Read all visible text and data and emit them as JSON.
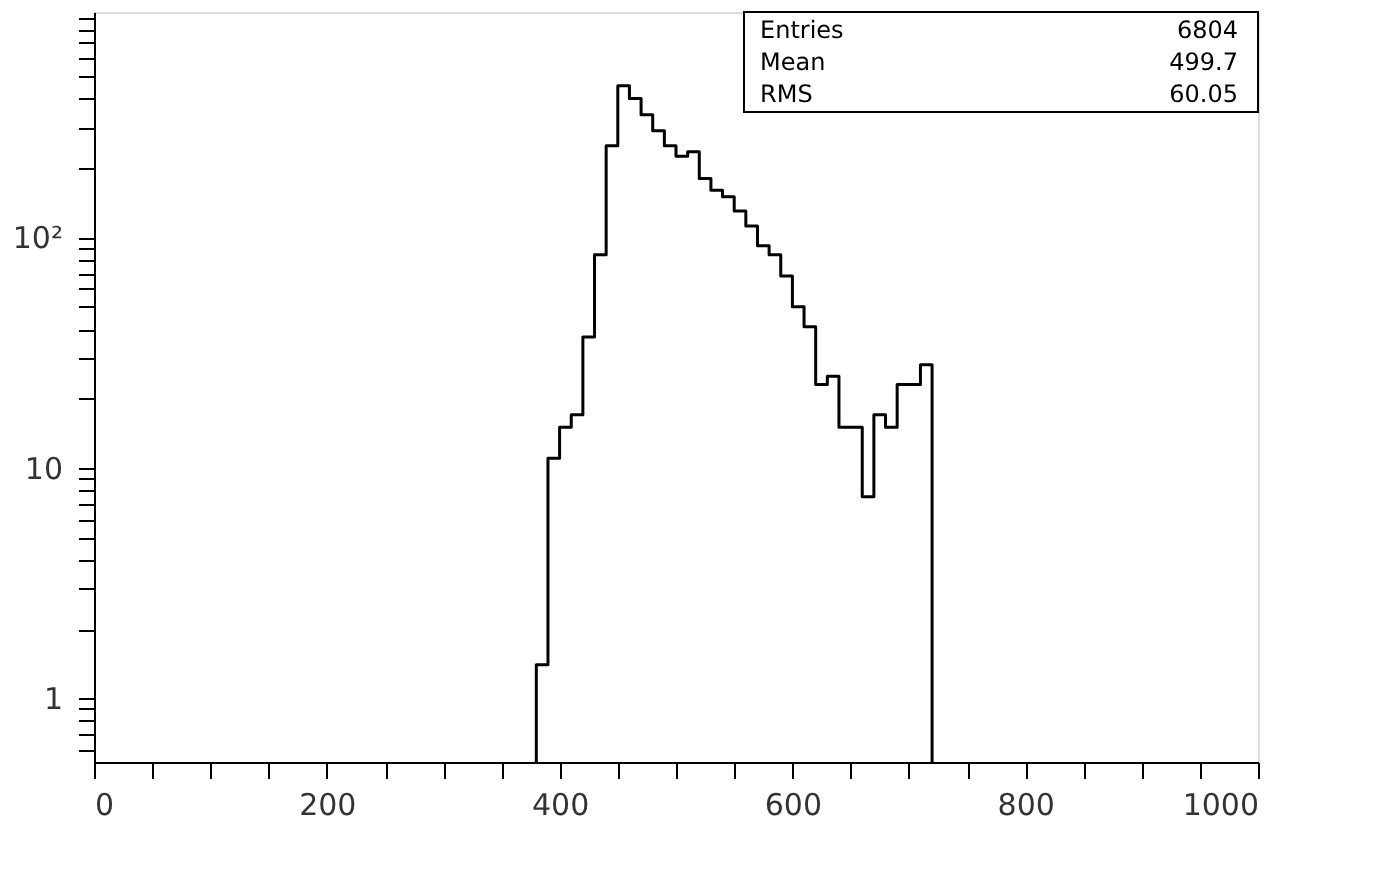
{
  "chart_data": {
    "type": "histogram",
    "bins": [
      380,
      390,
      400,
      410,
      420,
      430,
      440,
      450,
      460,
      470,
      480,
      490,
      500,
      510,
      520,
      530,
      540,
      550,
      560,
      570,
      580,
      590,
      600,
      610,
      620,
      630,
      640,
      650,
      660,
      670,
      680,
      690,
      700,
      710,
      720
    ],
    "values": [
      1.4,
      11,
      15,
      17,
      37,
      84,
      250,
      455,
      400,
      340,
      290,
      250,
      225,
      235,
      180,
      160,
      150,
      130,
      112,
      92,
      84,
      68,
      50,
      41,
      23,
      25,
      15,
      15,
      7.5,
      17,
      15,
      23,
      23,
      28
    ],
    "color": "#000000",
    "log": true,
    "xlim": [
      0,
      1000
    ],
    "ylim": [
      0.53,
      950
    ],
    "xticks": [
      0,
      {
        "value": 50,
        "label": null
      },
      {
        "value": 100,
        "label": null
      },
      {
        "value": 150,
        "label": null
      },
      200,
      {
        "value": 250,
        "label": null
      },
      {
        "value": 300,
        "label": null
      },
      {
        "value": 350,
        "label": null
      },
      400,
      {
        "value": 450,
        "label": null
      },
      {
        "value": 500,
        "label": null
      },
      {
        "value": 550,
        "label": null
      },
      600,
      {
        "value": 650,
        "label": null
      },
      {
        "value": 700,
        "label": null
      },
      {
        "value": 750,
        "label": null
      },
      800,
      {
        "value": 850,
        "label": null
      },
      {
        "value": 900,
        "label": null
      },
      {
        "value": 950,
        "label": null
      },
      1000
    ],
    "yticks": [
      {
        "value": 0.6,
        "label": null
      },
      {
        "value": 0.7,
        "label": null
      },
      {
        "value": 0.8,
        "label": null
      },
      {
        "value": 0.9,
        "label": null
      },
      1,
      {
        "value": 2,
        "label": null
      },
      {
        "value": 3,
        "label": null
      },
      {
        "value": 4,
        "label": null
      },
      {
        "value": 5,
        "label": null
      },
      {
        "value": 6,
        "label": null
      },
      {
        "value": 7,
        "label": null
      },
      {
        "value": 8,
        "label": null
      },
      {
        "value": 9,
        "label": null
      },
      10,
      {
        "value": 20,
        "label": null
      },
      {
        "value": 30,
        "label": null
      },
      {
        "value": 40,
        "label": null
      },
      {
        "value": 50,
        "label": null
      },
      {
        "value": 60,
        "label": null
      },
      {
        "value": 70,
        "label": null
      },
      {
        "value": 80,
        "label": null
      },
      {
        "value": 90,
        "label": null
      },
      {
        "value": 100,
        "label": "10²"
      },
      {
        "value": 200,
        "label": null
      },
      {
        "value": 300,
        "label": null
      },
      {
        "value": 400,
        "label": null
      },
      {
        "value": 500,
        "label": null
      },
      {
        "value": 600,
        "label": null
      },
      {
        "value": 700,
        "label": null
      },
      {
        "value": 800,
        "label": null
      },
      {
        "value": 900,
        "label": null
      }
    ],
    "grid": false,
    "annotations": [
      "Entries",
      "6804",
      "Mean",
      "499.7",
      "RMS",
      "60.05"
    ]
  }
}
